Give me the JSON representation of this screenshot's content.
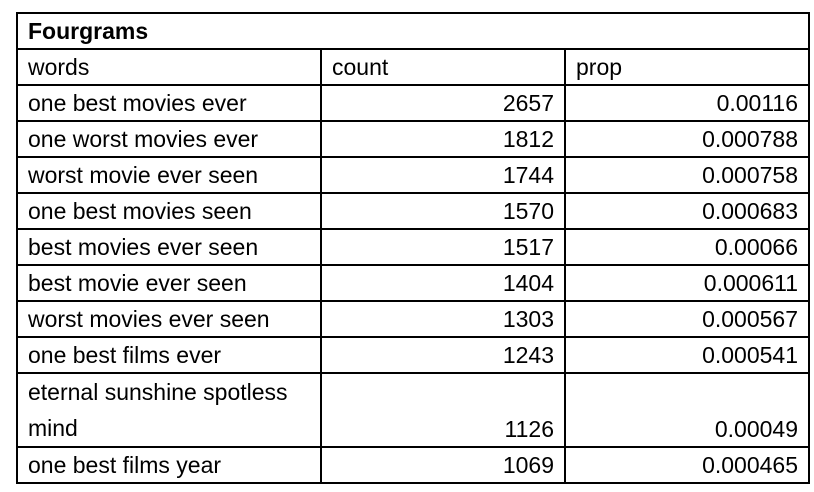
{
  "table": {
    "title": "Fourgrams",
    "headers": [
      "words",
      "count",
      "prop"
    ],
    "rows": [
      {
        "words": "one best movies ever",
        "count": "2657",
        "prop": "0.00116"
      },
      {
        "words": "one worst movies ever",
        "count": "1812",
        "prop": "0.000788"
      },
      {
        "words": "worst movie ever seen",
        "count": "1744",
        "prop": "0.000758"
      },
      {
        "words": "one best movies seen",
        "count": "1570",
        "prop": "0.000683"
      },
      {
        "words": "best movies ever seen",
        "count": "1517",
        "prop": "0.00066"
      },
      {
        "words": "best movie ever seen",
        "count": "1404",
        "prop": "0.000611"
      },
      {
        "words": "worst movies ever seen",
        "count": "1303",
        "prop": "0.000567"
      },
      {
        "words": "one best films ever",
        "count": "1243",
        "prop": "0.000541"
      },
      {
        "words": "eternal sunshine spotless mind",
        "count": "1126",
        "prop": "0.00049"
      },
      {
        "words": "one best films year",
        "count": "1069",
        "prop": "0.000465"
      }
    ]
  }
}
